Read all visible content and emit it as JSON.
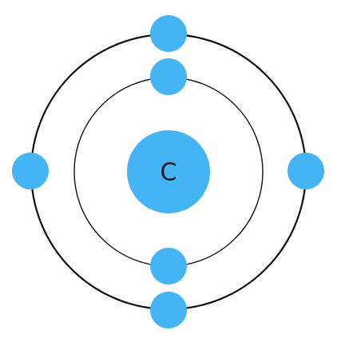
{
  "nucleus": {
    "label": "C"
  }
}
